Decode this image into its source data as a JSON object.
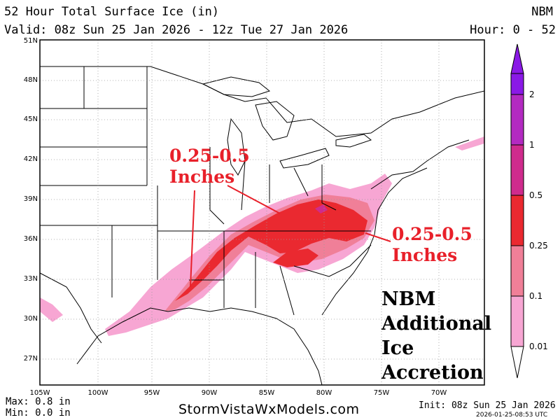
{
  "header": {
    "title": "52 Hour Total Surface Ice (in)",
    "model": "NBM",
    "valid": "Valid: 08z Sun 25 Jan 2026 - 12z Tue 27 Jan 2026",
    "hours": "Hour: 0 - 52"
  },
  "axes": {
    "lat_labels": [
      "51N",
      "48N",
      "45N",
      "42N",
      "39N",
      "36N",
      "33N",
      "30N",
      "27N"
    ],
    "lon_labels": [
      "105W",
      "100W",
      "95W",
      "90W",
      "85W",
      "80W",
      "75W",
      "70W"
    ]
  },
  "colorbar": {
    "labels": [
      "2",
      "1",
      "0.5",
      "0.25",
      "0.1",
      "0.01"
    ],
    "colors": {
      "lt_0_01": "#ffffff",
      "b_0_01_0_1": "#f7a6d3",
      "b_0_1_0_25": "#f07f98",
      "b_0_25_0_5": "#ea2930",
      "b_0_5_1": "#cf2b8d",
      "b_1_2": "#b32ac1",
      "gt_2": "#8a19e6"
    }
  },
  "annotations": {
    "west": "0.25-0.5\nInches",
    "east": "0.25-0.5\nInches",
    "note": [
      "NBM",
      "Additional",
      "Ice",
      "Accretion"
    ]
  },
  "footer": {
    "max": "Max: 0.8 in",
    "min": "Min: 0.0 in",
    "site": "StormVistaWxModels.com",
    "init": "Init: 08z Sun 25 Jan 2026",
    "stamp": "2026-01-25-08:53 UTC"
  }
}
